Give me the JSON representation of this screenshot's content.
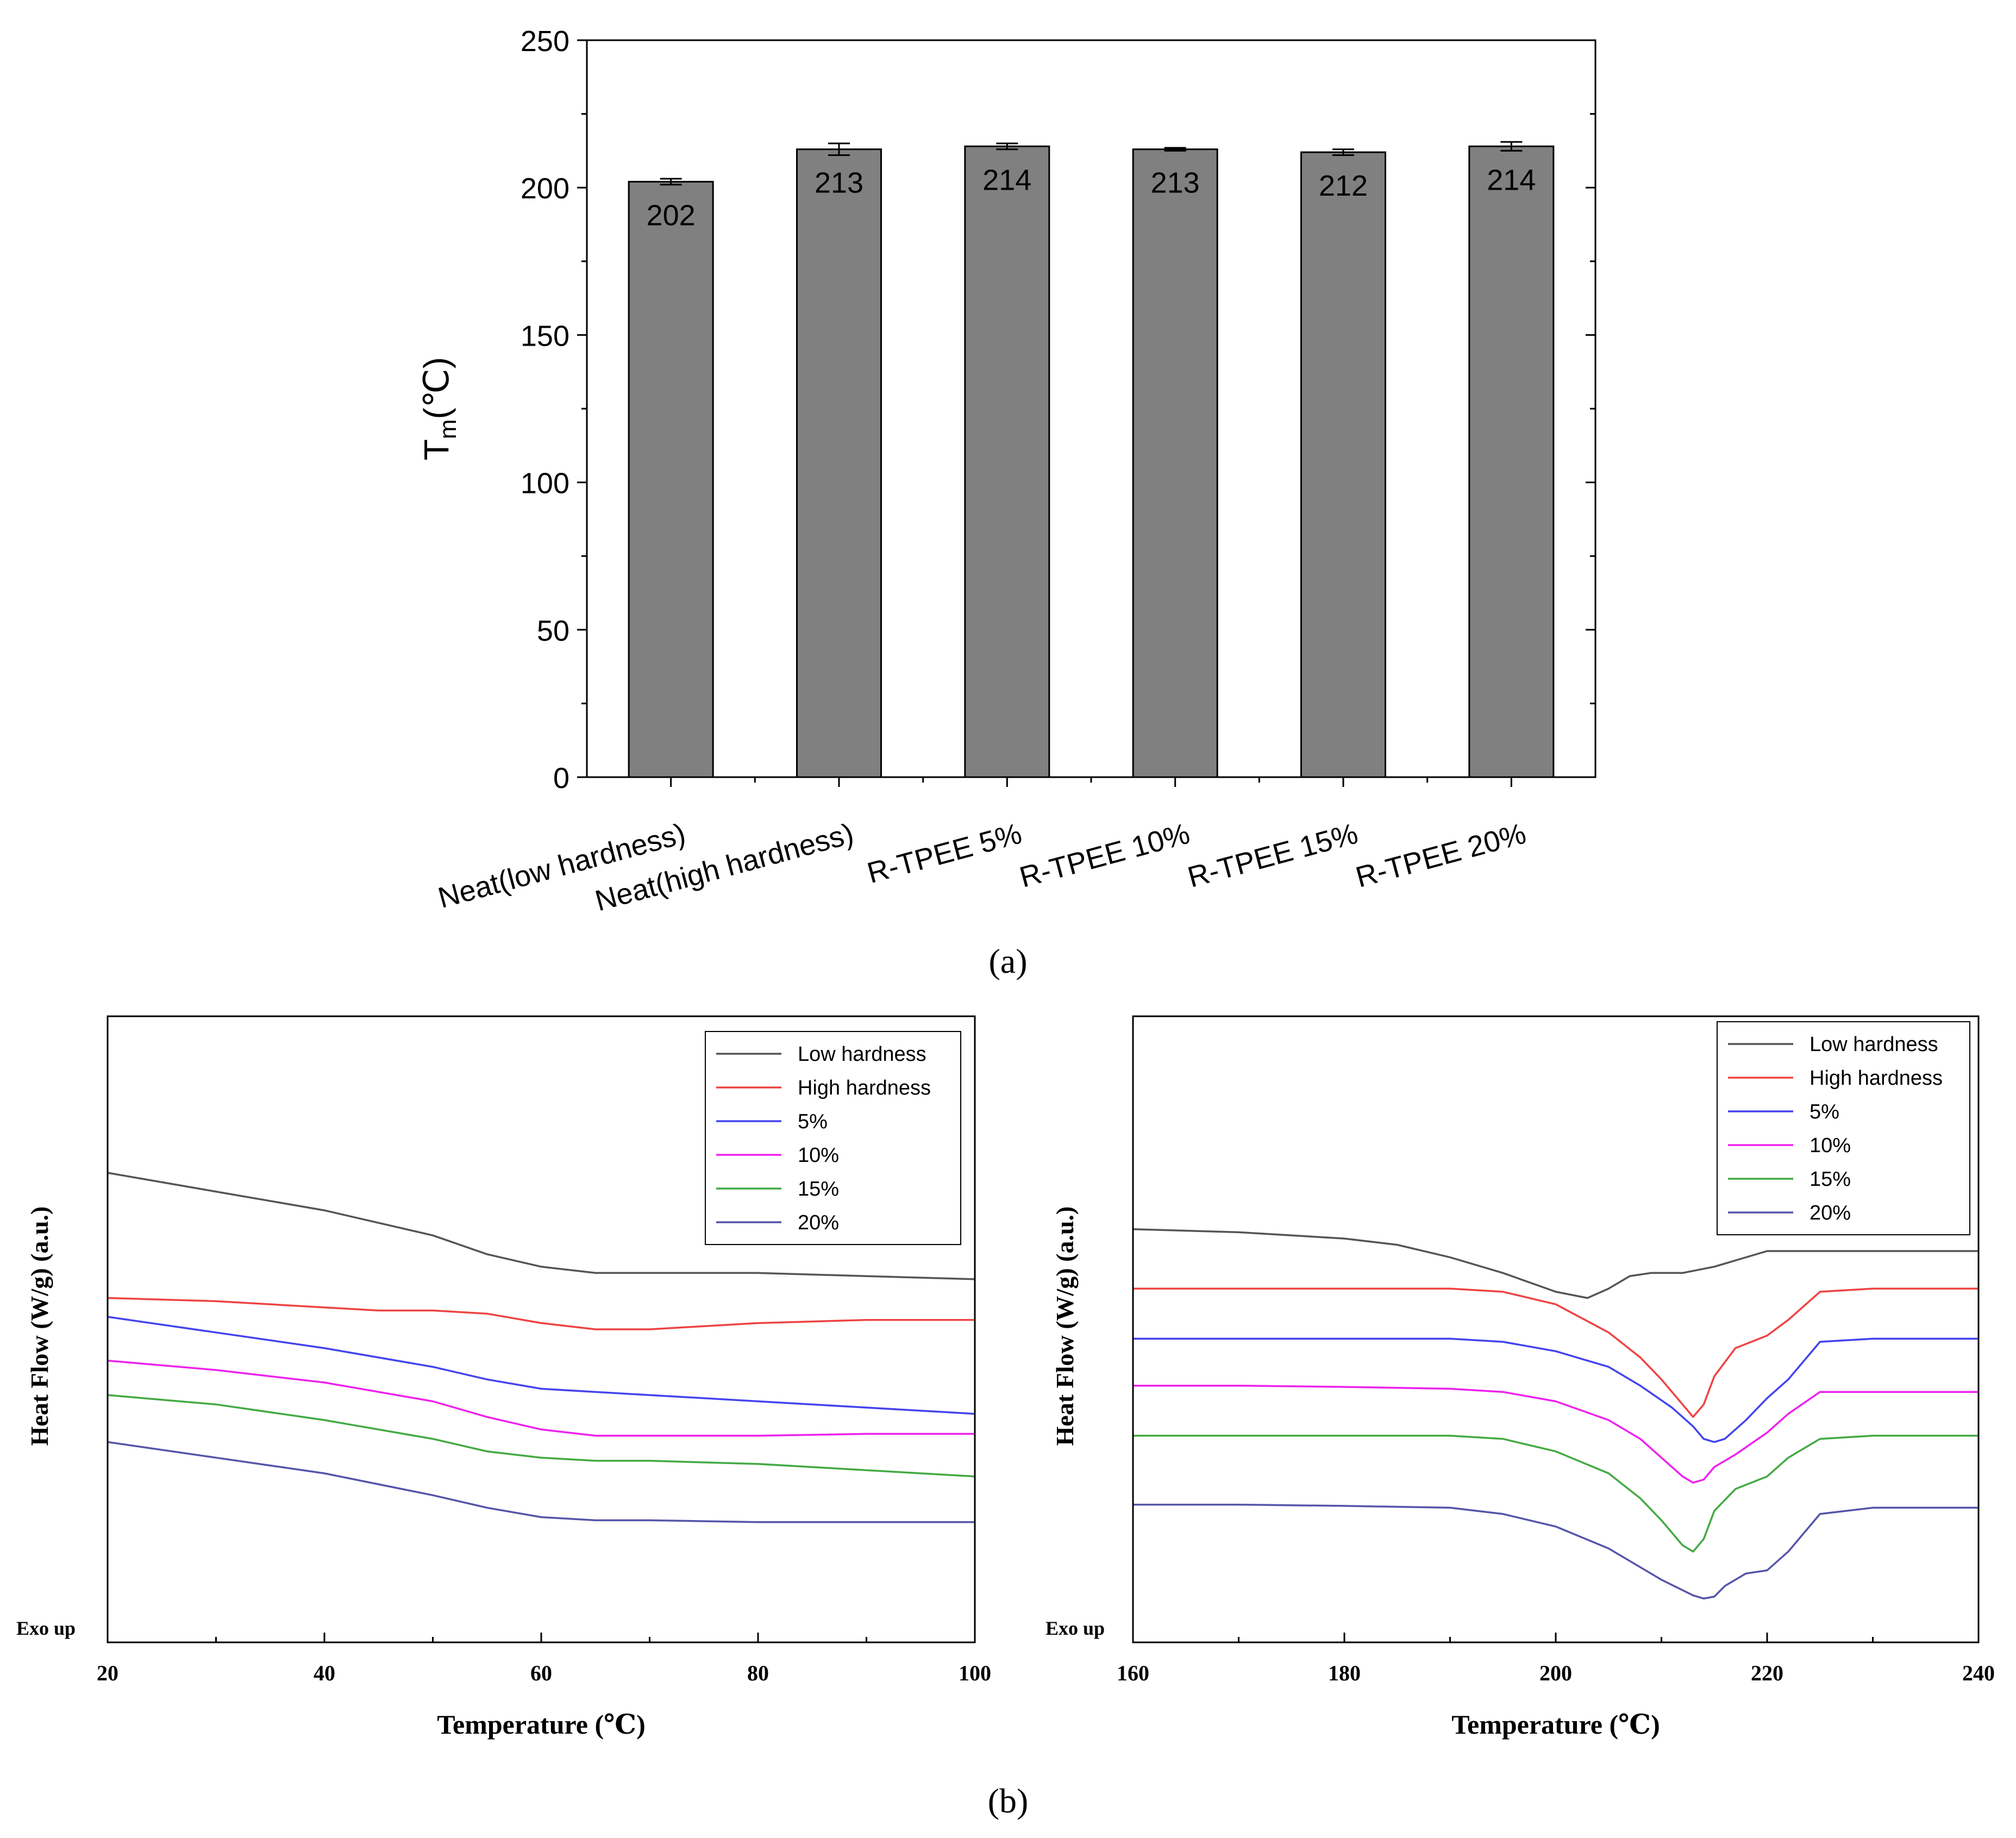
{
  "chart_data": [
    {
      "type": "bar",
      "panel_label": "a",
      "title": "",
      "ylabel_main": "T",
      "ylabel_sub": "m",
      "ylabel_unit": "(℃)",
      "xlabel": "",
      "categories": [
        "Neat(low hardness)",
        "Neat(high hardness)",
        "R-TPEE 5%",
        "R-TPEE 10%",
        "R-TPEE 15%",
        "R-TPEE 20%"
      ],
      "values": [
        202,
        213,
        214,
        213,
        212,
        214
      ],
      "errors": [
        1,
        2,
        1,
        0.5,
        1,
        1.5
      ],
      "data_labels": [
        "202",
        "213",
        "214",
        "213",
        "212",
        "214"
      ],
      "ylim": [
        0,
        250
      ],
      "yticks": [
        0,
        50,
        100,
        150,
        200,
        250
      ],
      "ytick_labels": [
        "0",
        "50",
        "100",
        "150",
        "200",
        "250"
      ],
      "bar_color": "#808080",
      "grid": false
    },
    {
      "type": "line",
      "panel_label": "b",
      "xlabel": "Temperature (℃)",
      "ylabel": "Heat Flow (W/g) (a.u.)",
      "annotation": "Exo up",
      "xlim": [
        20,
        100
      ],
      "xticks": [
        20,
        40,
        60,
        80,
        100
      ],
      "xtick_labels": [
        "20",
        "40",
        "60",
        "80",
        "100"
      ],
      "ylim": [
        0,
        100
      ],
      "legend_position": "top-right",
      "grid": false,
      "series": [
        {
          "name": "Low hardness",
          "color": "#555555",
          "x": [
            20,
            30,
            40,
            50,
            55,
            60,
            65,
            70,
            80,
            90,
            100
          ],
          "y": [
            75,
            72,
            69,
            65,
            62,
            60,
            59,
            59,
            59,
            58.5,
            58
          ]
        },
        {
          "name": "High hardness",
          "color": "#ee4444",
          "x": [
            20,
            30,
            40,
            45,
            50,
            55,
            60,
            65,
            70,
            80,
            90,
            100
          ],
          "y": [
            55,
            54.5,
            53.5,
            53,
            53,
            52.5,
            51,
            50,
            50,
            51,
            51.5,
            51.5
          ]
        },
        {
          "name": "5%",
          "color": "#4444ee",
          "x": [
            20,
            30,
            40,
            50,
            55,
            60,
            65,
            70,
            80,
            90,
            100
          ],
          "y": [
            52,
            49.5,
            47,
            44,
            42,
            40.5,
            40,
            39.5,
            38.5,
            37.5,
            36.5
          ]
        },
        {
          "name": "10%",
          "color": "#ee22ee",
          "x": [
            20,
            30,
            40,
            50,
            55,
            60,
            65,
            70,
            80,
            90,
            100
          ],
          "y": [
            45,
            43.5,
            41.5,
            38.5,
            36,
            34,
            33,
            33,
            33,
            33.3,
            33.3
          ]
        },
        {
          "name": "15%",
          "color": "#44aa44",
          "x": [
            20,
            30,
            40,
            50,
            55,
            60,
            65,
            70,
            80,
            90,
            100
          ],
          "y": [
            39.5,
            38,
            35.5,
            32.5,
            30.5,
            29.5,
            29,
            29,
            28.5,
            27.5,
            26.5
          ]
        },
        {
          "name": "20%",
          "color": "#5555aa",
          "x": [
            20,
            30,
            40,
            50,
            55,
            60,
            65,
            70,
            80,
            90,
            100
          ],
          "y": [
            32,
            29.5,
            27,
            23.5,
            21.5,
            20,
            19.5,
            19.5,
            19.2,
            19.2,
            19.2
          ]
        }
      ]
    },
    {
      "type": "line",
      "panel_label": "b",
      "xlabel": "Temperature (℃)",
      "ylabel": "Heat Flow (W/g) (a.u.)",
      "annotation": "Exo up",
      "xlim": [
        160,
        240
      ],
      "xticks": [
        160,
        180,
        200,
        220,
        240
      ],
      "xtick_labels": [
        "160",
        "180",
        "200",
        "220",
        "240"
      ],
      "ylim": [
        0,
        100
      ],
      "legend_position": "top-right",
      "grid": false,
      "series": [
        {
          "name": "Low hardness",
          "color": "#555555",
          "x": [
            160,
            170,
            180,
            185,
            190,
            195,
            200,
            203,
            205,
            207,
            209,
            212,
            215,
            218,
            220,
            225,
            230,
            240
          ],
          "y": [
            66,
            65.5,
            64.5,
            63.5,
            61.5,
            59,
            56,
            55,
            56.5,
            58.5,
            59,
            59,
            60,
            61.5,
            62.5,
            62.5,
            62.5,
            62.5
          ]
        },
        {
          "name": "High hardness",
          "color": "#ee4444",
          "x": [
            160,
            170,
            180,
            190,
            195,
            200,
            205,
            208,
            210,
            212,
            213,
            214,
            215,
            217,
            220,
            222,
            225,
            230,
            240
          ],
          "y": [
            56.5,
            56.5,
            56.5,
            56.5,
            56,
            54,
            49.5,
            45.5,
            42,
            38,
            36,
            38,
            42.5,
            47,
            49,
            51.5,
            56,
            56.5,
            56.5
          ]
        },
        {
          "name": "5%",
          "color": "#4444ee",
          "x": [
            160,
            170,
            180,
            190,
            195,
            200,
            205,
            208,
            211,
            213,
            214,
            215,
            216,
            218,
            220,
            222,
            225,
            230,
            240
          ],
          "y": [
            48.5,
            48.5,
            48.5,
            48.5,
            48,
            46.5,
            44,
            41,
            37.5,
            34.5,
            32.5,
            32,
            32.5,
            35.5,
            39,
            42,
            48,
            48.5,
            48.5
          ]
        },
        {
          "name": "10%",
          "color": "#ee22ee",
          "x": [
            160,
            170,
            180,
            190,
            195,
            200,
            205,
            208,
            210,
            212,
            213,
            214,
            215,
            217,
            220,
            222,
            225,
            230,
            240
          ],
          "y": [
            41,
            41,
            40.8,
            40.5,
            40,
            38.5,
            35.5,
            32.5,
            29.5,
            26.5,
            25.5,
            26,
            28,
            30,
            33.5,
            36.5,
            40,
            40,
            40
          ]
        },
        {
          "name": "15%",
          "color": "#44aa44",
          "x": [
            160,
            170,
            180,
            190,
            195,
            200,
            205,
            208,
            210,
            212,
            213,
            214,
            215,
            217,
            220,
            222,
            225,
            230,
            240
          ],
          "y": [
            33,
            33,
            33,
            33,
            32.5,
            30.5,
            27,
            23,
            19.5,
            15.5,
            14.5,
            16.5,
            21,
            24.5,
            26.5,
            29.5,
            32.5,
            33,
            33
          ]
        },
        {
          "name": "20%",
          "color": "#5555aa",
          "x": [
            160,
            170,
            180,
            190,
            195,
            200,
            205,
            210,
            213,
            214,
            215,
            216,
            218,
            220,
            222,
            225,
            230,
            240
          ],
          "y": [
            22,
            22,
            21.8,
            21.5,
            20.5,
            18.5,
            15,
            10,
            7.5,
            7,
            7.3,
            9,
            11,
            11.5,
            14.5,
            20.5,
            21.5,
            21.5
          ]
        }
      ]
    }
  ],
  "captions": {
    "a": "(a)",
    "b": "(b)"
  }
}
